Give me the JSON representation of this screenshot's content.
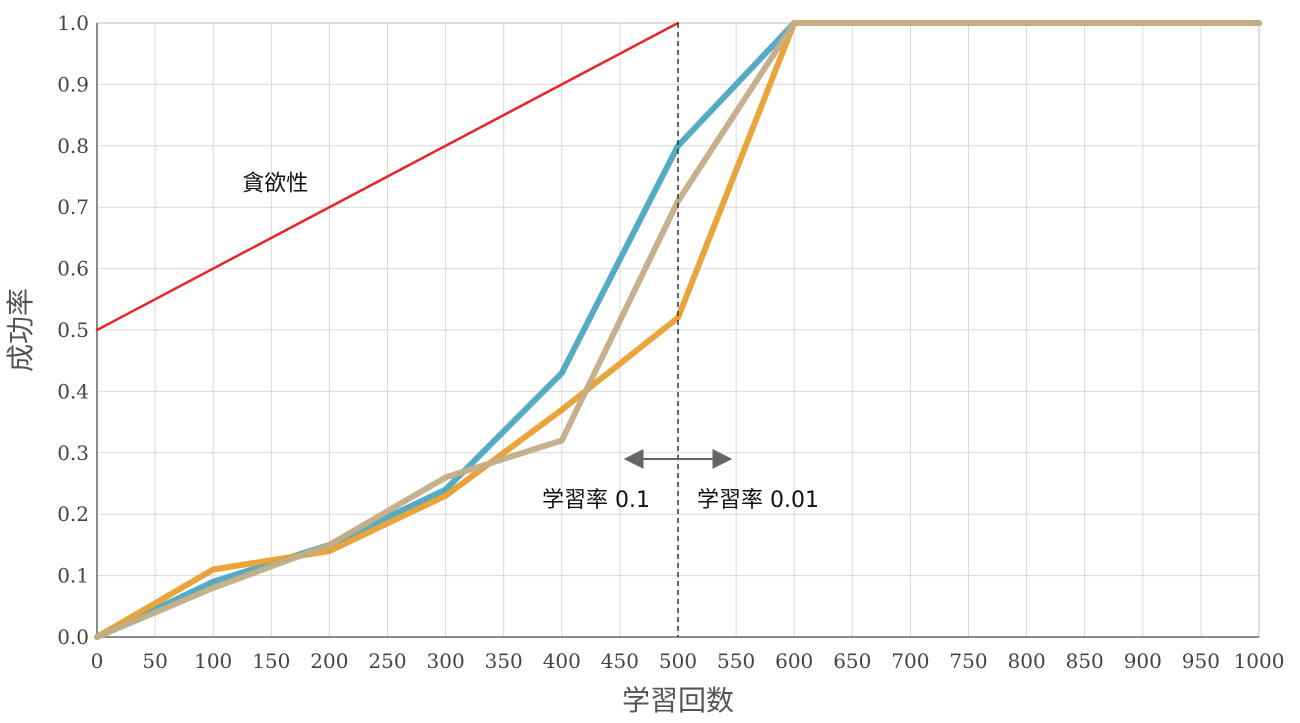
{
  "chart_data": {
    "type": "line",
    "xlabel": "学習回数",
    "ylabel": "成功率",
    "xlim": [
      0,
      1000
    ],
    "ylim": [
      0,
      1.0
    ],
    "x_ticks": [
      "0",
      "50",
      "100",
      "150",
      "200",
      "250",
      "300",
      "350",
      "400",
      "450",
      "500",
      "550",
      "600",
      "650",
      "700",
      "750",
      "800",
      "850",
      "900",
      "950",
      "1000"
    ],
    "y_ticks": [
      "0.0",
      "0.1",
      "0.2",
      "0.3",
      "0.4",
      "0.5",
      "0.6",
      "0.7",
      "0.8",
      "0.9",
      "1.0"
    ],
    "grid": true,
    "legend": "none",
    "series": [
      {
        "color": "#4aa8c0",
        "x": [
          0,
          100,
          200,
          300,
          400,
          500,
          600,
          1000
        ],
        "values": [
          0,
          0.09,
          0.15,
          0.24,
          0.43,
          0.8,
          1.0,
          1.0
        ]
      },
      {
        "color": "#e8a030",
        "x": [
          0,
          100,
          200,
          300,
          400,
          500,
          600,
          1000
        ],
        "values": [
          0,
          0.11,
          0.14,
          0.23,
          0.37,
          0.52,
          1.0,
          1.0
        ]
      },
      {
        "color": "#c2ae86",
        "x": [
          0,
          100,
          200,
          300,
          400,
          500,
          600,
          1000
        ],
        "values": [
          0,
          0.08,
          0.15,
          0.26,
          0.32,
          0.71,
          1.0,
          1.0
        ]
      },
      {
        "color": "#e8232a",
        "x": [
          0,
          500
        ],
        "values": [
          0.5,
          1.0
        ]
      }
    ],
    "annotations": {
      "greedy_label": "貪欲性",
      "lr_left_label": "学習率 0.1",
      "lr_right_label": "学習率 0.01",
      "divider_x": 500
    }
  }
}
